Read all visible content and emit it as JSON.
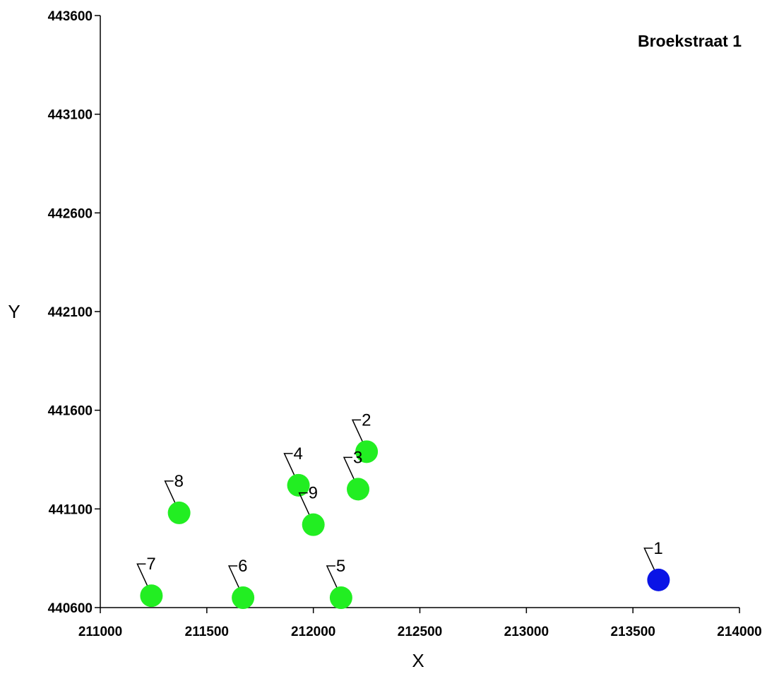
{
  "chart_data": {
    "type": "scatter",
    "title": "Broekstraat 1",
    "xlabel": "X",
    "ylabel": "Y",
    "xlim": [
      211000,
      214000
    ],
    "ylim": [
      440600,
      443600
    ],
    "xticks": [
      211000,
      211500,
      212000,
      212500,
      213000,
      213500,
      214000
    ],
    "yticks": [
      440600,
      441100,
      441600,
      442100,
      442600,
      443100,
      443600
    ],
    "grid": false,
    "points": [
      {
        "label": "1",
        "x": 213620,
        "y": 440740,
        "color": "#0a14e6"
      },
      {
        "label": "2",
        "x": 212250,
        "y": 441390,
        "color": "#22ee22"
      },
      {
        "label": "3",
        "x": 212210,
        "y": 441200,
        "color": "#22ee22"
      },
      {
        "label": "4",
        "x": 211930,
        "y": 441220,
        "color": "#22ee22"
      },
      {
        "label": "5",
        "x": 212130,
        "y": 440650,
        "color": "#22ee22"
      },
      {
        "label": "6",
        "x": 211670,
        "y": 440650,
        "color": "#22ee22"
      },
      {
        "label": "7",
        "x": 211240,
        "y": 440660,
        "color": "#22ee22"
      },
      {
        "label": "8",
        "x": 211370,
        "y": 441080,
        "color": "#22ee22"
      },
      {
        "label": "9",
        "x": 212000,
        "y": 441020,
        "color": "#22ee22"
      }
    ]
  }
}
